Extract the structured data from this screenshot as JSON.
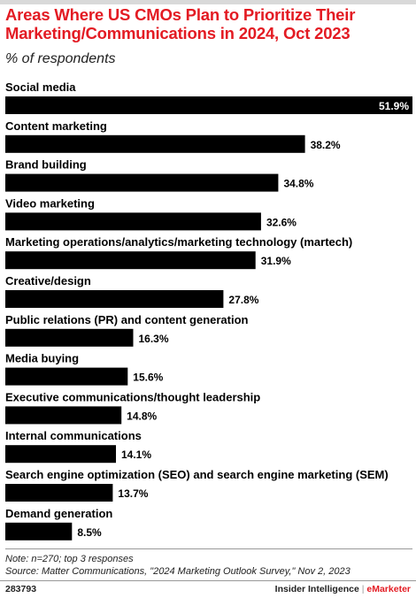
{
  "title": "Areas Where US CMOs Plan to Prioritize Their Marketing/Communications in 2024, Oct 2023",
  "subtitle": "% of respondents",
  "note": "Note: n=270; top 3 responses",
  "source": "Source: Matter Communications, \"2024 Marketing Outlook Survey,\" Nov 2, 2023",
  "footer": {
    "chart_id": "283793",
    "brand_left": "Insider Intelligence",
    "separator": "|",
    "brand_right": "eMarketer"
  },
  "chart_data": {
    "type": "bar",
    "orientation": "horizontal",
    "title": "Areas Where US CMOs Plan to Prioritize Their Marketing/Communications in 2024, Oct 2023",
    "subtitle": "% of respondents",
    "unit": "%",
    "xlim": [
      0,
      51.9
    ],
    "grid": false,
    "categories": [
      "Social media",
      "Content marketing",
      "Brand building",
      "Video marketing",
      "Marketing operations/analytics/marketing technology (martech)",
      "Creative/design",
      "Public relations (PR) and content generation",
      "Media buying",
      "Executive communications/thought leadership",
      "Internal communications",
      "Search engine optimization (SEO) and search engine marketing (SEM)",
      "Demand generation"
    ],
    "values": [
      51.9,
      38.2,
      34.8,
      32.6,
      31.9,
      27.8,
      16.3,
      15.6,
      14.8,
      14.1,
      13.7,
      8.5
    ],
    "value_labels": [
      "51.9%",
      "38.2%",
      "34.8%",
      "32.6%",
      "31.9%",
      "27.8%",
      "16.3%",
      "15.6%",
      "14.8%",
      "14.1%",
      "13.7%",
      "8.5%"
    ],
    "colors": {
      "bar": "#000000",
      "title": "#e31b23"
    }
  }
}
